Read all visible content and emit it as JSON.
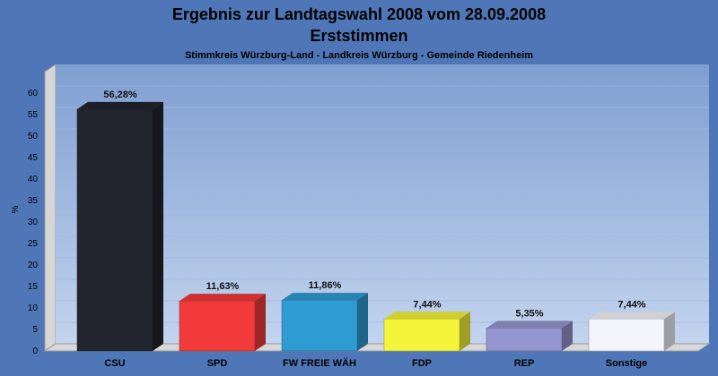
{
  "chart_data": {
    "type": "bar",
    "title": "Ergebnis zur Landtagswahl 2008 vom 28.09.2008",
    "title2": "Erststimmen",
    "subtitle": "Stimmkreis Würzburg-Land - Landkreis Würzburg - Gemeinde Riedenheim",
    "ylabel": "%",
    "ylim": [
      0,
      65
    ],
    "yticks": [
      0,
      5,
      10,
      15,
      20,
      25,
      30,
      35,
      40,
      45,
      50,
      55,
      60
    ],
    "grid": true,
    "categories": [
      "CSU",
      "SPD",
      "FW FREIE WÄH",
      "FDP",
      "REP",
      "Sonstige"
    ],
    "values": [
      56.28,
      11.63,
      11.86,
      7.44,
      5.35,
      7.44
    ],
    "value_labels": [
      "56,28%",
      "11,63%",
      "11,86%",
      "7,44%",
      "5,35%",
      "7,44%"
    ],
    "colors": [
      "#22252e",
      "#f23a3a",
      "#2e9bd3",
      "#f4f43a",
      "#9595cf",
      "#f3f5fa"
    ]
  }
}
